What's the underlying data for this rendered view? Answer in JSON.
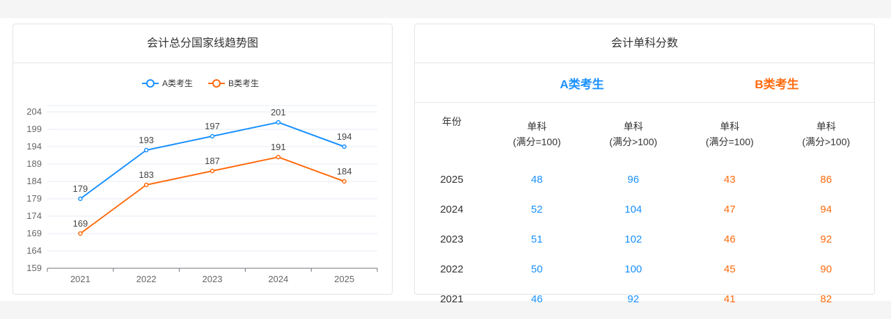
{
  "left_card": {
    "title": "会计总分国家线趋势图"
  },
  "right_card": {
    "title": "会计单科分数",
    "group_a": "A类考生",
    "group_b": "B类考生",
    "headers": [
      "年份",
      "单科",
      "(满分=100)",
      "单科",
      "(满分>100)",
      "单科",
      "(满分=100)",
      "单科",
      "(满分>100)"
    ],
    "rows": [
      [
        "2025",
        "48",
        "96",
        "43",
        "86"
      ],
      [
        "2024",
        "52",
        "104",
        "47",
        "94"
      ],
      [
        "2023",
        "51",
        "102",
        "46",
        "92"
      ],
      [
        "2022",
        "50",
        "100",
        "45",
        "90"
      ],
      [
        "2021",
        "46",
        "92",
        "41",
        "82"
      ]
    ]
  },
  "colors": {
    "a": "#1890ff",
    "b": "#ff6a0d"
  },
  "chart_data": {
    "type": "line",
    "title": "会计总分国家线趋势图",
    "categories": [
      "2021",
      "2022",
      "2023",
      "2024",
      "2025"
    ],
    "series": [
      {
        "name": "A类考生",
        "values": [
          179,
          193,
          197,
          201,
          194
        ]
      },
      {
        "name": "B类考生",
        "values": [
          169,
          183,
          187,
          191,
          184
        ]
      }
    ],
    "yticks": [
      "159",
      "164",
      "169",
      "174",
      "179",
      "184",
      "189",
      "194",
      "199",
      "204"
    ],
    "ylim": [
      159,
      204
    ],
    "grid": true,
    "legend": "top-center",
    "xlabel": "",
    "ylabel": ""
  }
}
